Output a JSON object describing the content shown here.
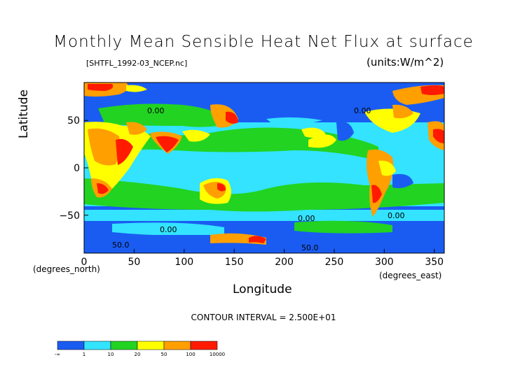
{
  "chart_data": {
    "type": "heatmap",
    "title": "Monthly Mean Sensible Heat Net Flux at surface",
    "file_label": "[SHTFL_1992-03_NCEP.nc]",
    "units_label": "(units:W/m^2)",
    "xlabel": "Longitude",
    "ylabel": "Latitude",
    "x_units": "(degrees_east)",
    "y_units": "(degrees_north)",
    "xlim": [
      0,
      360
    ],
    "ylim": [
      -90,
      90
    ],
    "x_ticks": [
      0,
      50,
      100,
      150,
      200,
      250,
      300,
      350
    ],
    "y_ticks": [
      -50,
      0,
      50
    ],
    "contour_interval": "CONTOUR INTERVAL = 2.500E+01",
    "contour_labels": [
      "0.00",
      "0.00",
      "0.00",
      "0.00",
      "50.0",
      "50.0",
      "0.00"
    ],
    "colorbar": {
      "bounds": [
        "-∞",
        "1",
        "10",
        "20",
        "50",
        "100",
        "10000"
      ],
      "colors": [
        "#1a5cf2",
        "#33e3ff",
        "#22d322",
        "#ffff00",
        "#ff9f00",
        "#ff1a00"
      ]
    }
  }
}
